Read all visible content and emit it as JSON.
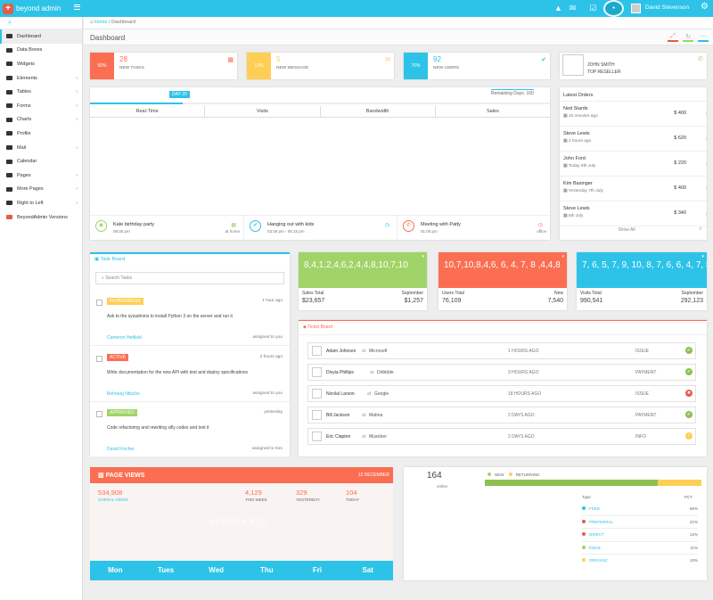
{
  "app": {
    "brand": "beyond admin",
    "user_name": "David Stevenson"
  },
  "sidebar": {
    "items": [
      {
        "label": "Dashboard"
      },
      {
        "label": "Data Boxes"
      },
      {
        "label": "Widgets"
      },
      {
        "label": "Elements"
      },
      {
        "label": "Tables"
      },
      {
        "label": "Forms"
      },
      {
        "label": "Charts"
      },
      {
        "label": "Profile"
      },
      {
        "label": "Mail"
      },
      {
        "label": "Calendar"
      },
      {
        "label": "Pages"
      },
      {
        "label": "More Pages"
      },
      {
        "label": "Right to Left"
      },
      {
        "label": "BeyondAdmin Versions"
      }
    ]
  },
  "breadcrumb": {
    "home": "Home",
    "sep": "/",
    "current": "Dashboard"
  },
  "page": {
    "title": "Dashboard"
  },
  "stats": [
    {
      "pct": "50%",
      "value": "28",
      "label": "NEW TASKS",
      "color": "#fb6e52"
    },
    {
      "pct": "12%",
      "value": "5",
      "label": "NEW MESSAGE",
      "color": "#ffce55"
    },
    {
      "pct": "76%",
      "value": "92",
      "label": "NEW USERS",
      "color": "#2dc3e8"
    }
  ],
  "reseller": {
    "name": "JOHN SMITH",
    "role": "TOP RESELLER"
  },
  "timeline": {
    "day_badge": "DAY 20",
    "remaining": "Remaining Days: 100",
    "tabs": [
      "Real-Time",
      "Visits",
      "Bandwidth",
      "Sales"
    ]
  },
  "events": [
    {
      "title": "Kate birthday party",
      "time": "08:30 pm",
      "place": "at home"
    },
    {
      "title": "Hanging out with kids",
      "time": "03:30 pm - 05:15 pm",
      "place": ""
    },
    {
      "title": "Meeting with Patty",
      "time": "01:00 pm",
      "place": "office"
    }
  ],
  "orders": {
    "title": "Latest Orders",
    "show_all": "Show All",
    "help": "?",
    "items": [
      {
        "name": "Ned Stards",
        "date": "10 minutes ago",
        "price": "$ 400"
      },
      {
        "name": "Steve Lewis",
        "date": "2 hours ago",
        "price": "$ 620"
      },
      {
        "name": "John Ford",
        "date": "Today 8th July",
        "price": "$ 220"
      },
      {
        "name": "Kim Basinger",
        "date": "Yesterday 7th July",
        "price": "$ 400"
      },
      {
        "name": "Steve Lewis",
        "date": "5th July",
        "price": "$ 340"
      }
    ]
  },
  "taskboard": {
    "title": "Task Board",
    "search_placeholder": "Search Tasks",
    "items": [
      {
        "status": "IN PROGRESS",
        "color": "#ffce55",
        "time": "1 hour ago",
        "text": "Ask to the sysadmins to install Python 3 on the server and run it",
        "person": "Cameron Hetfield",
        "assign": "assigned to you"
      },
      {
        "status": "ACTIVE",
        "color": "#fb6e52",
        "time": "2 hours ago",
        "text": "Write documentation for the new API with test and deploy specifications",
        "person": "Behrang Nitsche",
        "assign": "assigned to you"
      },
      {
        "status": "APPROVED",
        "color": "#a0d468",
        "time": "yesterday",
        "text": "Code refactoring and rewriting silly codes and test it",
        "person": "David Fincher",
        "assign": "assigned to Kim"
      }
    ]
  },
  "sparkboxes": [
    {
      "seq": "8,4,1,2,4,6,2,4,4,8,10,7,10",
      "color": "#a0d468",
      "l1": "Sales Total",
      "r1": "September",
      "l2": "$23,657",
      "r2": "$1,257"
    },
    {
      "seq": "10,7,10,8,4,6, 6, 4, 7, 8 ,4,4,8",
      "color": "#fb6e52",
      "l1": "Users Total",
      "r1": "New",
      "l2": "76,109",
      "r2": "7,540"
    },
    {
      "seq": "7, 6, 5, 7, 9, 10, 8, 7, 6, 6, 4, 7, 8",
      "color": "#2dc3e8",
      "l1": "Visits Total",
      "r1": "September",
      "l2": "990,541",
      "r2": "292,123"
    }
  ],
  "tickets": {
    "title": "Ticket Board",
    "at": "at",
    "items": [
      {
        "name": "Adam Johnson",
        "company": "Microsoft",
        "time": "1 HOURS AGO",
        "type": "ISSUE",
        "status": "ok"
      },
      {
        "name": "Divyia Phillips",
        "company": "Dribbble",
        "time": "3 HOURS AGO",
        "type": "PAYMENT",
        "status": "ok"
      },
      {
        "name": "Nicolai Larson",
        "company": "Google",
        "time": "18 HOURS AGO",
        "type": "ISSUE",
        "status": "error"
      },
      {
        "name": "Bill Jackson",
        "company": "Mabna",
        "time": "2 DAYS AGO",
        "type": "PAYMENT",
        "status": "ok"
      },
      {
        "name": "Eric Clapton",
        "company": "Musicker",
        "time": "2 DAYS AGO",
        "type": "INFO",
        "status": "warn"
      }
    ]
  },
  "pageviews": {
    "title": "PAGE VIEWS",
    "date": "13 DECEMBER",
    "total": "534,908",
    "total_label": "OVERAL VIEWS",
    "week": "4,129",
    "week_label": "THIS WEEK",
    "yesterday": "329",
    "yesterday_label": "YESTERDAY",
    "today": "104",
    "today_label": "TODAY",
    "spark": "5,7,6,5,9,4,3,7,2",
    "days": [
      "Mon",
      "Tues",
      "Wed",
      "Thu",
      "Fri",
      "Sat"
    ]
  },
  "online": {
    "count": "164",
    "label": "online",
    "legend_new": "NEW",
    "legend_returning": "RETURNING",
    "new_fraction": 0.8,
    "head_type": "Type",
    "head_pct": "PCT",
    "rows": [
      {
        "type": "FEED",
        "pct": "65%",
        "color": "#2dc3e8"
      },
      {
        "type": "PREFERRAL",
        "pct": "21%",
        "color": "#e75b48"
      },
      {
        "type": "DIRECT",
        "pct": "12%",
        "color": "#e75b48"
      },
      {
        "type": "EMAIL",
        "pct": "11%",
        "color": "#a0d468"
      },
      {
        "type": "ORGANIC",
        "pct": "10%",
        "color": "#ffce55"
      }
    ]
  }
}
